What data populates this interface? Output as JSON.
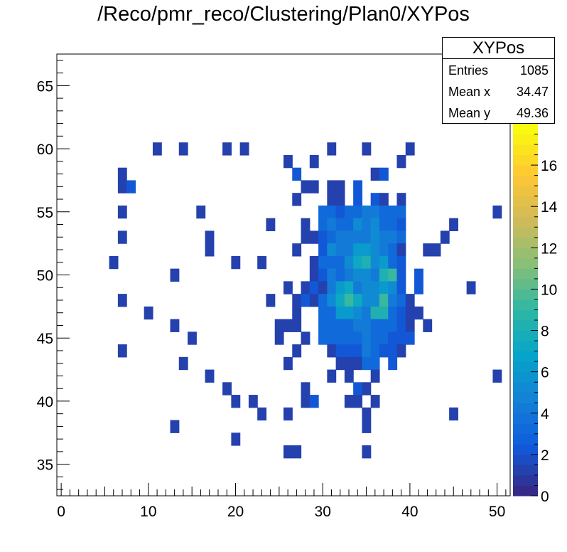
{
  "title": "/Reco/pmr_reco/Clustering/Plan0/XYPos",
  "stats": {
    "name": "XYPos",
    "rows": [
      {
        "label": "Entries",
        "value": "1085"
      },
      {
        "label": "Mean x",
        "value": "34.47"
      },
      {
        "label": "Mean y",
        "value": "49.36"
      }
    ]
  },
  "chart_data": {
    "type": "heatmap",
    "title": "/Reco/pmr_reco/Clustering/Plan0/XYPos",
    "xlabel": "",
    "ylabel": "",
    "xlim": [
      -0.5,
      51.5
    ],
    "ylim": [
      32.5,
      67.5
    ],
    "x_ticks": [
      "0",
      "10",
      "20",
      "30",
      "40",
      "50"
    ],
    "y_ticks": [
      "35",
      "40",
      "45",
      "50",
      "55",
      "60",
      "65"
    ],
    "z_range": [
      0,
      18
    ],
    "z_ticks": [
      "0",
      "2",
      "4",
      "6",
      "8",
      "10",
      "12",
      "14",
      "16"
    ],
    "colormap": "kBird",
    "colors": [
      "#352a87",
      "#0f5cdd",
      "#1481d6",
      "#06a4ca",
      "#2eb7a4",
      "#87bf77",
      "#d1bb59",
      "#fec832",
      "#f9fb0e"
    ],
    "bins": [
      [
        11,
        60,
        1
      ],
      [
        14,
        60,
        1
      ],
      [
        19,
        60,
        1
      ],
      [
        21,
        60,
        1
      ],
      [
        31,
        60,
        1
      ],
      [
        35,
        60,
        1
      ],
      [
        40,
        60,
        1
      ],
      [
        26,
        59,
        1
      ],
      [
        29,
        59,
        1
      ],
      [
        39,
        59,
        1
      ],
      [
        7,
        58,
        1
      ],
      [
        27,
        58,
        2
      ],
      [
        36,
        58,
        1
      ],
      [
        37,
        58,
        2
      ],
      [
        7,
        57,
        1
      ],
      [
        8,
        57,
        2
      ],
      [
        28,
        57,
        1
      ],
      [
        29,
        57,
        1
      ],
      [
        31,
        57,
        1
      ],
      [
        32,
        57,
        1
      ],
      [
        34,
        57,
        2
      ],
      [
        27,
        56,
        1
      ],
      [
        31,
        56,
        1
      ],
      [
        32,
        56,
        1
      ],
      [
        34,
        56,
        2
      ],
      [
        36,
        56,
        2
      ],
      [
        37,
        56,
        1
      ],
      [
        39,
        56,
        1
      ],
      [
        7,
        55,
        1
      ],
      [
        16,
        55,
        1
      ],
      [
        30,
        55,
        3
      ],
      [
        31,
        55,
        3
      ],
      [
        32,
        55,
        2
      ],
      [
        33,
        55,
        3
      ],
      [
        34,
        55,
        3
      ],
      [
        35,
        55,
        4
      ],
      [
        36,
        55,
        4
      ],
      [
        37,
        55,
        3
      ],
      [
        38,
        55,
        3
      ],
      [
        39,
        55,
        3
      ],
      [
        50,
        55,
        1
      ],
      [
        24,
        54,
        1
      ],
      [
        28,
        54,
        1
      ],
      [
        30,
        54,
        3
      ],
      [
        31,
        54,
        4
      ],
      [
        32,
        54,
        3
      ],
      [
        33,
        54,
        3
      ],
      [
        34,
        54,
        5
      ],
      [
        35,
        54,
        4
      ],
      [
        36,
        54,
        5
      ],
      [
        37,
        54,
        3
      ],
      [
        38,
        54,
        3
      ],
      [
        39,
        54,
        2
      ],
      [
        45,
        54,
        1
      ],
      [
        7,
        53,
        1
      ],
      [
        17,
        53,
        1
      ],
      [
        28,
        53,
        1
      ],
      [
        29,
        53,
        1
      ],
      [
        30,
        53,
        2
      ],
      [
        31,
        53,
        3
      ],
      [
        32,
        53,
        4
      ],
      [
        33,
        53,
        4
      ],
      [
        34,
        53,
        4
      ],
      [
        35,
        53,
        4
      ],
      [
        36,
        53,
        5
      ],
      [
        37,
        53,
        4
      ],
      [
        38,
        53,
        4
      ],
      [
        39,
        53,
        3
      ],
      [
        44,
        53,
        1
      ],
      [
        17,
        52,
        1
      ],
      [
        27,
        52,
        1
      ],
      [
        30,
        52,
        2
      ],
      [
        31,
        52,
        5
      ],
      [
        32,
        52,
        4
      ],
      [
        33,
        52,
        4
      ],
      [
        34,
        52,
        6
      ],
      [
        35,
        52,
        6
      ],
      [
        36,
        52,
        5
      ],
      [
        37,
        52,
        4
      ],
      [
        38,
        52,
        3
      ],
      [
        39,
        52,
        1
      ],
      [
        42,
        52,
        1
      ],
      [
        43,
        52,
        1
      ],
      [
        6,
        51,
        1
      ],
      [
        20,
        51,
        1
      ],
      [
        23,
        51,
        1
      ],
      [
        29,
        51,
        1
      ],
      [
        30,
        51,
        3
      ],
      [
        31,
        51,
        3
      ],
      [
        32,
        51,
        3
      ],
      [
        33,
        51,
        5
      ],
      [
        34,
        51,
        7
      ],
      [
        35,
        51,
        8
      ],
      [
        36,
        51,
        5
      ],
      [
        37,
        51,
        6
      ],
      [
        38,
        51,
        3
      ],
      [
        39,
        51,
        2
      ],
      [
        13,
        50,
        1
      ],
      [
        29,
        50,
        1
      ],
      [
        30,
        50,
        2
      ],
      [
        31,
        50,
        4
      ],
      [
        32,
        50,
        3
      ],
      [
        33,
        50,
        4
      ],
      [
        34,
        50,
        5
      ],
      [
        35,
        50,
        5
      ],
      [
        36,
        50,
        4
      ],
      [
        37,
        50,
        8
      ],
      [
        38,
        50,
        9
      ],
      [
        39,
        50,
        2
      ],
      [
        41,
        50,
        2
      ],
      [
        26,
        49,
        1
      ],
      [
        28,
        49,
        1
      ],
      [
        29,
        49,
        2
      ],
      [
        30,
        49,
        1
      ],
      [
        31,
        49,
        4
      ],
      [
        32,
        49,
        6
      ],
      [
        33,
        49,
        7
      ],
      [
        34,
        49,
        4
      ],
      [
        35,
        49,
        5
      ],
      [
        36,
        49,
        5
      ],
      [
        37,
        49,
        6
      ],
      [
        38,
        49,
        5
      ],
      [
        39,
        49,
        2
      ],
      [
        41,
        49,
        2
      ],
      [
        47,
        49,
        1
      ],
      [
        7,
        48,
        1
      ],
      [
        24,
        48,
        1
      ],
      [
        27,
        48,
        1
      ],
      [
        28,
        48,
        2
      ],
      [
        29,
        48,
        1
      ],
      [
        30,
        48,
        3
      ],
      [
        31,
        48,
        5
      ],
      [
        32,
        48,
        7
      ],
      [
        33,
        48,
        9
      ],
      [
        34,
        48,
        7
      ],
      [
        35,
        48,
        5
      ],
      [
        36,
        48,
        5
      ],
      [
        37,
        48,
        9
      ],
      [
        38,
        48,
        4
      ],
      [
        39,
        48,
        3
      ],
      [
        40,
        48,
        1
      ],
      [
        10,
        47,
        1
      ],
      [
        27,
        47,
        1
      ],
      [
        30,
        47,
        3
      ],
      [
        31,
        47,
        3
      ],
      [
        32,
        47,
        6
      ],
      [
        33,
        47,
        6
      ],
      [
        34,
        47,
        5
      ],
      [
        35,
        47,
        4
      ],
      [
        36,
        47,
        8
      ],
      [
        37,
        47,
        8
      ],
      [
        38,
        47,
        3
      ],
      [
        39,
        47,
        2
      ],
      [
        40,
        47,
        1
      ],
      [
        41,
        47,
        1
      ],
      [
        13,
        46,
        1
      ],
      [
        25,
        46,
        1
      ],
      [
        26,
        46,
        1
      ],
      [
        27,
        46,
        1
      ],
      [
        30,
        46,
        3
      ],
      [
        31,
        46,
        3
      ],
      [
        32,
        46,
        3
      ],
      [
        33,
        46,
        3
      ],
      [
        34,
        46,
        4
      ],
      [
        35,
        46,
        4
      ],
      [
        36,
        46,
        3
      ],
      [
        37,
        46,
        3
      ],
      [
        38,
        46,
        3
      ],
      [
        39,
        46,
        2
      ],
      [
        40,
        46,
        1
      ],
      [
        42,
        46,
        1
      ],
      [
        15,
        45,
        1
      ],
      [
        25,
        45,
        1
      ],
      [
        28,
        45,
        1
      ],
      [
        30,
        45,
        3
      ],
      [
        31,
        45,
        3
      ],
      [
        32,
        45,
        3
      ],
      [
        33,
        45,
        3
      ],
      [
        34,
        45,
        3
      ],
      [
        35,
        45,
        4
      ],
      [
        36,
        45,
        3
      ],
      [
        37,
        45,
        3
      ],
      [
        38,
        45,
        2
      ],
      [
        39,
        45,
        2
      ],
      [
        40,
        45,
        2
      ],
      [
        7,
        44,
        1
      ],
      [
        27,
        44,
        1
      ],
      [
        31,
        44,
        1
      ],
      [
        32,
        44,
        2
      ],
      [
        33,
        44,
        2
      ],
      [
        34,
        44,
        2
      ],
      [
        35,
        44,
        4
      ],
      [
        36,
        44,
        3
      ],
      [
        37,
        44,
        2
      ],
      [
        38,
        44,
        2
      ],
      [
        39,
        44,
        1
      ],
      [
        14,
        43,
        1
      ],
      [
        26,
        43,
        1
      ],
      [
        32,
        43,
        1
      ],
      [
        33,
        43,
        1
      ],
      [
        34,
        43,
        1
      ],
      [
        35,
        43,
        3
      ],
      [
        36,
        43,
        3
      ],
      [
        38,
        43,
        2
      ],
      [
        17,
        42,
        1
      ],
      [
        31,
        42,
        1
      ],
      [
        33,
        42,
        1
      ],
      [
        36,
        42,
        1
      ],
      [
        50,
        42,
        1
      ],
      [
        19,
        41,
        1
      ],
      [
        28,
        41,
        1
      ],
      [
        34,
        41,
        2
      ],
      [
        35,
        41,
        1
      ],
      [
        20,
        40,
        1
      ],
      [
        22,
        40,
        1
      ],
      [
        28,
        40,
        1
      ],
      [
        29,
        40,
        2
      ],
      [
        33,
        40,
        1
      ],
      [
        34,
        40,
        1
      ],
      [
        36,
        40,
        1
      ],
      [
        23,
        39,
        1
      ],
      [
        26,
        39,
        1
      ],
      [
        35,
        39,
        1
      ],
      [
        45,
        39,
        1
      ],
      [
        13,
        38,
        1
      ],
      [
        35,
        38,
        1
      ],
      [
        20,
        37,
        1
      ],
      [
        26,
        36,
        1
      ],
      [
        27,
        36,
        1
      ],
      [
        35,
        36,
        1
      ]
    ]
  }
}
